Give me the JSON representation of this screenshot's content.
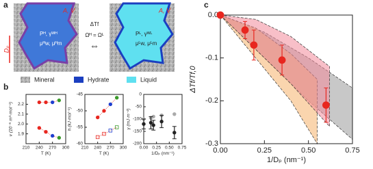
{
  "diagram": {
    "panel_labels": [
      "a",
      "b",
      "c"
    ],
    "region_label": "A, V",
    "pore_size": "Dₚ",
    "hydrate_props": [
      "Pᴴ, γᵂᴴ",
      "μᴴw, μᴴm"
    ],
    "liquid_props": [
      "Pᴸ, γᵂᴸ",
      "μᴸw, μᴸm"
    ],
    "transition": [
      "ΔTf",
      "Ωᴴ = Ωᴸ"
    ],
    "legend": [
      "Mineral",
      "Hydrate",
      "Liquid"
    ]
  },
  "chart_data": [
    {
      "type": "scatter",
      "xlabel": "T (K)",
      "ylabel": "v (10⁻⁵ m³·mol⁻¹)",
      "xlim": [
        210,
        300
      ],
      "xticks": [
        210,
        240,
        270,
        300
      ],
      "ylim": [
        1.8,
        2.3
      ],
      "yticks": [
        {
          "value": 1.9,
          "label": "1.9"
        },
        {
          "value": 2,
          "label": "2.0"
        },
        {
          "value": 2.1,
          "label": "2.1"
        },
        {
          "value": 2.2,
          "label": "2.2"
        }
      ],
      "series": [
        {
          "x": [
            240,
            255,
            270,
            285
          ],
          "values": [
            2.22,
            2.22,
            2.22,
            2.24
          ],
          "colors": [
            "#e8261f",
            "#e8261f",
            "#1f3fcf",
            "#3a9a2a"
          ],
          "color": "#e8261f",
          "marker": "circle",
          "line_style": "dotted"
        },
        {
          "x": [
            240,
            255,
            270,
            285
          ],
          "values": [
            1.96,
            1.92,
            1.88,
            1.86
          ],
          "colors": [
            "#e8261f",
            "#e8261f",
            "#1f3fcf",
            "#3a9a2a"
          ],
          "color": "#e8261f",
          "marker": "circle",
          "line_style": "dotted"
        }
      ]
    },
    {
      "type": "scatter",
      "xlabel": "T (K)",
      "ylabel": "h (kJ·mol⁻¹)",
      "xlim": [
        210,
        300
      ],
      "xticks": [
        210,
        240,
        270,
        300
      ],
      "ylim": [
        -60,
        -45
      ],
      "yticks": [
        -60,
        -55,
        -50,
        -45
      ],
      "series": [
        {
          "x": [
            240,
            255,
            270,
            285
          ],
          "values": [
            -52,
            -50,
            -48,
            -46
          ],
          "colors": [
            "#e8261f",
            "#e8261f",
            "#1f3fcf",
            "#3a9a2a"
          ],
          "color": "#e8261f",
          "marker": "circle",
          "line_style": "dotted"
        },
        {
          "x": [
            240,
            255,
            270,
            285
          ],
          "values": [
            -58,
            -57,
            -56,
            -55
          ],
          "colors": [
            "#e8261f",
            "#e8261f",
            "#1f3fcf",
            "#3a9a2a"
          ],
          "color": "#e8261f",
          "marker": "square",
          "line_style": "dotted"
        }
      ]
    },
    {
      "type": "scatter",
      "xlabel": "1/Dₚ (nm⁻¹)",
      "ylabel": "γ (mJ·m⁻²)",
      "xlim": [
        0,
        0.75
      ],
      "xticks": [
        {
          "value": 0,
          "label": "0.00"
        },
        0.25,
        {
          "value": 0.5,
          "label": "0.50"
        },
        0.75
      ],
      "ylim": [
        -200,
        0
      ],
      "yticks": [
        -200,
        -150,
        -100,
        -50,
        0
      ],
      "series": [
        {
          "x": [
            0,
            0.14,
            0.19,
            0.35,
            0.6
          ],
          "values": [
            -100,
            -95,
            -90,
            -85,
            -80
          ],
          "color": "#aaaaaa",
          "marker": "circle"
        },
        {
          "x": [
            0,
            0.14,
            0.19,
            0.35,
            0.6
          ],
          "values": [
            -120,
            -115,
            -125,
            -110,
            -155
          ],
          "errors": [
            20,
            25,
            20,
            25,
            25
          ],
          "color": "#222222",
          "marker": "circle"
        }
      ]
    },
    {
      "type": "scatter",
      "xlabel": "1/Dₚ (nm⁻¹)",
      "ylabel": "ΔTf/Tf,0",
      "xlim": [
        0,
        0.75
      ],
      "xticks": [
        {
          "value": 0,
          "label": "0.00"
        },
        0.25,
        {
          "value": 0.5,
          "label": "0.50"
        },
        0.75
      ],
      "ylim": [
        -0.3,
        0
      ],
      "yticks": [
        -0.3,
        -0.2,
        -0.1,
        {
          "value": 0,
          "label": "0.0"
        }
      ],
      "bands": [
        {
          "color": "#9a9a9a",
          "x": [
            0,
            0.25,
            0.5,
            0.75
          ],
          "upper": [
            0,
            -0.04,
            -0.1,
            -0.17
          ],
          "lower": [
            0,
            -0.1,
            -0.2,
            -0.29
          ]
        },
        {
          "color": "#f5b26b",
          "x": [
            0,
            0.2,
            0.4,
            0.55
          ],
          "upper": [
            0,
            -0.03,
            -0.09,
            -0.15
          ],
          "lower": [
            0,
            -0.1,
            -0.2,
            -0.3
          ]
        },
        {
          "color": "#f28a9a",
          "x": [
            0,
            0.2,
            0.4,
            0.62
          ],
          "upper": [
            0,
            -0.01,
            -0.05,
            -0.12
          ],
          "lower": [
            0,
            -0.08,
            -0.16,
            -0.26
          ]
        }
      ],
      "series": [
        {
          "x": [
            0,
            0.14,
            0.19,
            0.35,
            0.6
          ],
          "values": [
            0,
            -0.035,
            -0.07,
            -0.105,
            -0.21
          ],
          "errors": [
            null,
            0.02,
            0.035,
            0.035,
            0.04
          ],
          "color": "#e8261f",
          "marker": "circle",
          "size": 5
        }
      ]
    }
  ]
}
